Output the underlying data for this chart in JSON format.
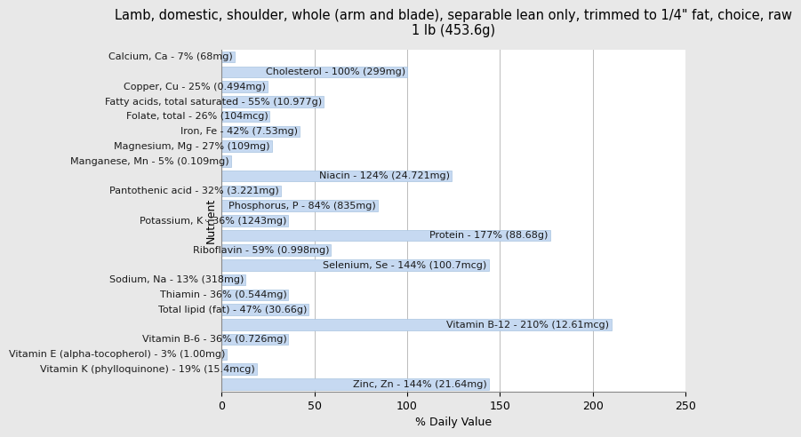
{
  "title": "Lamb, domestic, shoulder, whole (arm and blade), separable lean only, trimmed to 1/4\" fat, choice, raw\n1 lb (453.6g)",
  "xlabel": "% Daily Value",
  "ylabel": "Nutrient",
  "nutrients": [
    {
      "label": "Calcium, Ca - 7% (68mg)",
      "value": 7
    },
    {
      "label": "Cholesterol - 100% (299mg)",
      "value": 100
    },
    {
      "label": "Copper, Cu - 25% (0.494mg)",
      "value": 25
    },
    {
      "label": "Fatty acids, total saturated - 55% (10.977g)",
      "value": 55
    },
    {
      "label": "Folate, total - 26% (104mcg)",
      "value": 26
    },
    {
      "label": "Iron, Fe - 42% (7.53mg)",
      "value": 42
    },
    {
      "label": "Magnesium, Mg - 27% (109mg)",
      "value": 27
    },
    {
      "label": "Manganese, Mn - 5% (0.109mg)",
      "value": 5
    },
    {
      "label": "Niacin - 124% (24.721mg)",
      "value": 124
    },
    {
      "label": "Pantothenic acid - 32% (3.221mg)",
      "value": 32
    },
    {
      "label": "Phosphorus, P - 84% (835mg)",
      "value": 84
    },
    {
      "label": "Potassium, K - 36% (1243mg)",
      "value": 36
    },
    {
      "label": "Protein - 177% (88.68g)",
      "value": 177
    },
    {
      "label": "Riboflavin - 59% (0.998mg)",
      "value": 59
    },
    {
      "label": "Selenium, Se - 144% (100.7mcg)",
      "value": 144
    },
    {
      "label": "Sodium, Na - 13% (318mg)",
      "value": 13
    },
    {
      "label": "Thiamin - 36% (0.544mg)",
      "value": 36
    },
    {
      "label": "Total lipid (fat) - 47% (30.66g)",
      "value": 47
    },
    {
      "label": "Vitamin B-12 - 210% (12.61mcg)",
      "value": 210
    },
    {
      "label": "Vitamin B-6 - 36% (0.726mg)",
      "value": 36
    },
    {
      "label": "Vitamin E (alpha-tocopherol) - 3% (1.00mg)",
      "value": 3
    },
    {
      "label": "Vitamin K (phylloquinone) - 19% (15.4mcg)",
      "value": 19
    },
    {
      "label": "Zinc, Zn - 144% (21.64mg)",
      "value": 144
    }
  ],
  "bar_color": "#c6d9f1",
  "bar_edge_color": "#a8c4e0",
  "bg_color": "#e8e8e8",
  "plot_bg_color": "#ffffff",
  "xlim": [
    0,
    250
  ],
  "title_fontsize": 10.5,
  "label_fontsize": 8,
  "axis_fontsize": 9,
  "bar_height": 0.75
}
